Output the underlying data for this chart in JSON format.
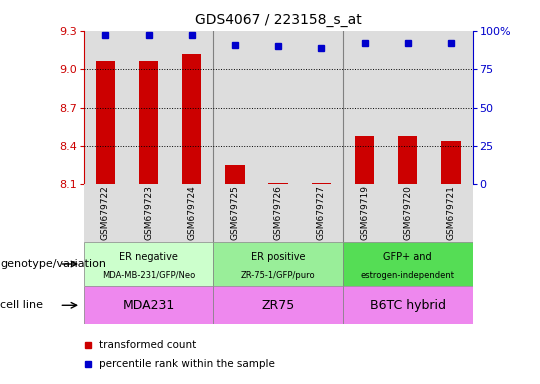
{
  "title": "GDS4067 / 223158_s_at",
  "samples": [
    "GSM679722",
    "GSM679723",
    "GSM679724",
    "GSM679725",
    "GSM679726",
    "GSM679727",
    "GSM679719",
    "GSM679720",
    "GSM679721"
  ],
  "bar_values": [
    9.06,
    9.06,
    9.12,
    8.25,
    8.11,
    8.11,
    8.48,
    8.48,
    8.44
  ],
  "dot_values": [
    97,
    97,
    97,
    91,
    90,
    89,
    92,
    92,
    92
  ],
  "bar_color": "#cc0000",
  "dot_color": "#0000cc",
  "ylim_left": [
    8.1,
    9.3
  ],
  "ylim_right": [
    0,
    100
  ],
  "yticks_left": [
    8.1,
    8.4,
    8.7,
    9.0,
    9.3
  ],
  "yticks_right": [
    0,
    25,
    50,
    75,
    100
  ],
  "dotted_lines": [
    8.4,
    8.7,
    9.0
  ],
  "group_colors": [
    "#ccffcc",
    "#99ee99",
    "#55dd55"
  ],
  "group_labels": [
    "ER negative\nMDA-MB-231/GFP/Neo",
    "ER positive\nZR-75-1/GFP/puro",
    "GFP+ and\nestrogen-independent"
  ],
  "cell_color": "#ee88ee",
  "cell_labels": [
    "MDA231",
    "ZR75",
    "B6TC hybrid"
  ],
  "group_starts": [
    0,
    3,
    6
  ],
  "group_ends": [
    3,
    6,
    9
  ],
  "row_labels": [
    "genotype/variation",
    "cell line"
  ],
  "bar_color_hex": "#cc0000",
  "dot_color_hex": "#0000cc",
  "column_bg": "#dddddd",
  "title_fontsize": 10,
  "tick_fontsize": 8,
  "sample_fontsize": 6.5,
  "legend_fontsize": 7.5,
  "row_label_fontsize": 8,
  "geno_fontsize": 7,
  "cell_fontsize": 9
}
